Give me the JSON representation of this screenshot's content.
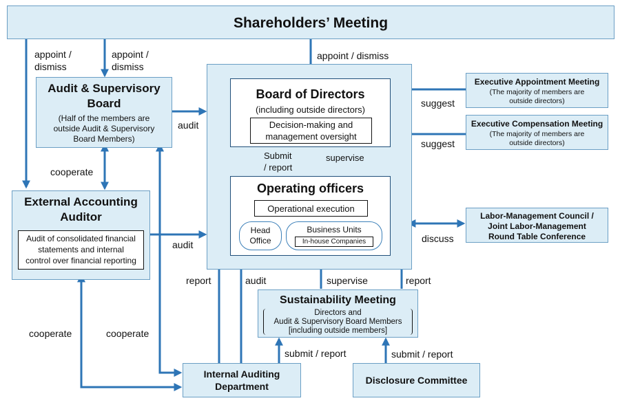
{
  "shareholders": {
    "title": "Shareholders’ Meeting"
  },
  "audit_board": {
    "title_line1": "Audit & Supervisory",
    "title_line2": "Board",
    "desc_line1": "(Half of the members are",
    "desc_line2": "outside Audit & Supervisory",
    "desc_line3": "Board Members)"
  },
  "external_auditor": {
    "title_line1": "External Accounting",
    "title_line2": "Auditor",
    "desc_line1": "Audit of consolidated financial",
    "desc_line2": "statements and internal",
    "desc_line3": "control over financial reporting"
  },
  "board": {
    "title": "Board of Directors",
    "subtitle": "(including outside directors)",
    "role_line1": "Decision-making and",
    "role_line2": "management oversight"
  },
  "operating": {
    "title": "Operating officers",
    "role": "Operational execution",
    "head_office_line1": "Head",
    "head_office_line2": "Office",
    "business_units": "Business Units",
    "inhouse": "In-house Companies"
  },
  "exec_appoint": {
    "title": "Executive Appointment Meeting",
    "desc_line1": "(The majority of members are",
    "desc_line2": "outside directors)"
  },
  "exec_comp": {
    "title": "Executive Compensation Meeting",
    "desc_line1": "(The majority of members are",
    "desc_line2": "outside directors)"
  },
  "labor": {
    "line1": "Labor-Management Council /",
    "line2": "Joint Labor-Management",
    "line3": "Round Table Conference"
  },
  "sustainability": {
    "title": "Sustainability Meeting",
    "line1": "Directors and",
    "line2": "Audit & Supervisory Board Members",
    "line3": "[including outside members]"
  },
  "internal_audit": {
    "line1": "Internal Auditing",
    "line2": "Department"
  },
  "disclosure": {
    "title": "Disclosure Committee"
  },
  "labels": {
    "appoint1": "appoint /",
    "dismiss1": "dismiss",
    "appoint2": "appoint /",
    "dismiss2": "dismiss",
    "appoint_dismiss": "appoint / dismiss",
    "audit_board_to_bod": "audit",
    "cooperate_mid": "cooperate",
    "audit_ext": "audit",
    "suggest1": "suggest",
    "suggest2": "suggest",
    "submit": "Submit",
    "report_slash": "/ report",
    "supervise_top": "supervise",
    "discuss": "discuss",
    "report_left": "report",
    "audit_internal": "audit",
    "supervise_bottom": "supervise",
    "report_right": "report",
    "cooperate_left": "cooperate",
    "cooperate_right": "cooperate",
    "submit_report1": "submit / report",
    "submit_report2": "submit / report"
  },
  "colors": {
    "arrow": "#2e75b6",
    "box_fill": "#dcedf6",
    "box_border": "#6a9ec4"
  }
}
